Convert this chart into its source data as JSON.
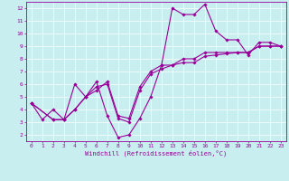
{
  "xlabel": "Windchill (Refroidissement éolien,°C)",
  "bg_color": "#c8eef0",
  "grid_color": "#ffffff",
  "line_color": "#990099",
  "xlim": [
    -0.5,
    23.5
  ],
  "ylim": [
    1.5,
    12.5
  ],
  "xticks": [
    0,
    1,
    2,
    3,
    4,
    5,
    6,
    7,
    8,
    9,
    10,
    11,
    12,
    13,
    14,
    15,
    16,
    17,
    18,
    19,
    20,
    21,
    22,
    23
  ],
  "yticks": [
    2,
    3,
    4,
    5,
    6,
    7,
    8,
    9,
    10,
    11,
    12
  ],
  "line1_x": [
    0,
    1,
    2,
    3,
    4,
    5,
    6,
    7,
    8,
    9,
    10,
    11,
    12,
    13,
    14,
    15,
    16,
    17,
    18,
    19,
    20,
    21,
    22,
    23
  ],
  "line1_y": [
    4.5,
    3.2,
    4.0,
    3.2,
    6.0,
    5.0,
    6.2,
    3.5,
    1.8,
    2.0,
    3.3,
    5.0,
    7.5,
    12.0,
    11.5,
    11.5,
    12.3,
    10.2,
    9.5,
    9.5,
    8.3,
    9.3,
    9.3,
    9.0
  ],
  "line2_x": [
    0,
    2,
    3,
    4,
    5,
    6,
    7,
    8,
    9,
    10,
    11,
    12,
    13,
    14,
    15,
    16,
    17,
    18,
    19,
    20,
    21,
    22,
    23
  ],
  "line2_y": [
    4.5,
    3.2,
    3.2,
    4.0,
    5.0,
    5.8,
    6.0,
    3.3,
    3.0,
    5.5,
    6.8,
    7.2,
    7.5,
    7.7,
    7.7,
    8.2,
    8.3,
    8.4,
    8.5,
    8.5,
    9.0,
    9.0,
    9.0
  ],
  "line3_x": [
    0,
    2,
    3,
    4,
    5,
    6,
    7,
    8,
    9,
    10,
    11,
    12,
    13,
    14,
    15,
    16,
    17,
    18,
    19,
    20,
    21,
    22,
    23
  ],
  "line3_y": [
    4.5,
    3.2,
    3.2,
    4.0,
    5.0,
    5.5,
    6.2,
    3.5,
    3.3,
    5.8,
    7.0,
    7.5,
    7.5,
    8.0,
    8.0,
    8.5,
    8.5,
    8.5,
    8.5,
    8.5,
    9.0,
    9.0,
    9.0
  ]
}
